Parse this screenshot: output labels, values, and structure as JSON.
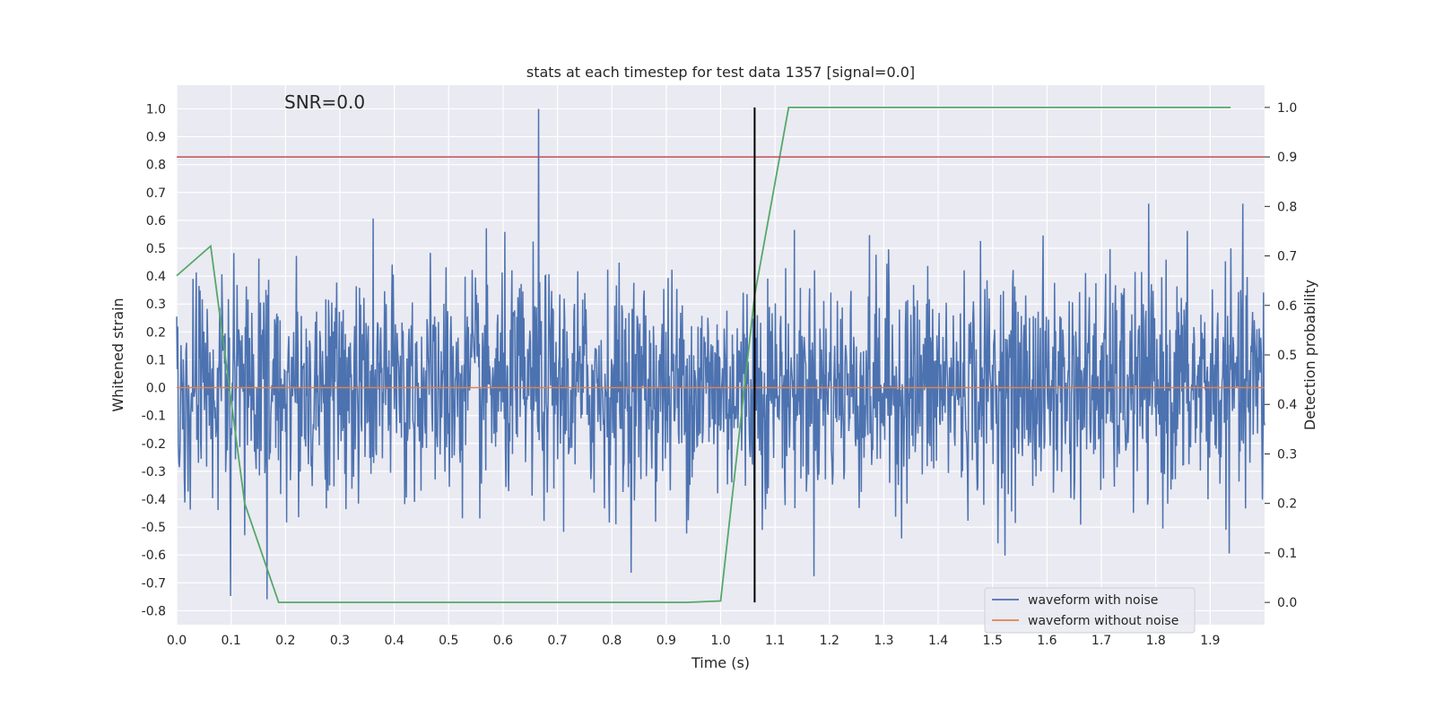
{
  "chart_data": {
    "type": "line",
    "title": "stats at each timestep for test data 1357 [signal=0.0]",
    "annotation": "SNR=0.0",
    "xlabel": "Time (s)",
    "ylabel": "Whitened strain",
    "y2label": "Detection probability",
    "xlim": [
      0.0,
      2.0
    ],
    "ylim": [
      -0.85,
      1.085
    ],
    "y2lim": [
      -0.045,
      1.045
    ],
    "xticks": [
      "0.0",
      "0.1",
      "0.2",
      "0.3",
      "0.4",
      "0.5",
      "0.6",
      "0.7",
      "0.8",
      "0.9",
      "1.0",
      "1.1",
      "1.2",
      "1.3",
      "1.4",
      "1.5",
      "1.6",
      "1.7",
      "1.8",
      "1.9"
    ],
    "yticks": [
      "1.0",
      "0.9",
      "0.8",
      "0.7",
      "0.6",
      "0.5",
      "0.4",
      "0.3",
      "0.2",
      "0.1",
      "0.0",
      "-0.1",
      "-0.2",
      "-0.3",
      "-0.4",
      "-0.5",
      "-0.6",
      "-0.7",
      "-0.8"
    ],
    "y2ticks": [
      "1.0",
      "0.9",
      "0.8",
      "0.7",
      "0.6",
      "0.5",
      "0.4",
      "0.3",
      "0.2",
      "0.1",
      "0.0"
    ],
    "grid": true,
    "legend_position": "lower-right",
    "series": [
      {
        "name": "waveform with noise",
        "axis": "left",
        "color": "#4c72b0",
        "sample_count": 2000,
        "x_range": [
          0.0,
          2.0
        ],
        "approx_std": 0.2,
        "max_value": 1.0,
        "min_value": -0.77,
        "spike_time": 0.665
      },
      {
        "name": "waveform without noise",
        "axis": "left",
        "color": "#dd8452",
        "x": [
          0.0,
          2.0
        ],
        "y": [
          0.0,
          0.0
        ]
      },
      {
        "name": "",
        "axis": "right",
        "color": "#55a868",
        "x": [
          0.0,
          0.0625,
          0.125,
          0.1875,
          0.25,
          0.9375,
          1.0,
          1.0625,
          1.125,
          1.9375
        ],
        "y": [
          0.66,
          0.72,
          0.2,
          0.0,
          0.0,
          0.0,
          0.003,
          0.62,
          1.0,
          1.0
        ]
      }
    ],
    "threshold": {
      "axis": "right",
      "value": 0.9,
      "color": "#c44e52"
    },
    "vertical_marker": {
      "x": 1.0625,
      "y2_range": [
        0.0,
        1.0
      ],
      "color": "#000000"
    }
  }
}
